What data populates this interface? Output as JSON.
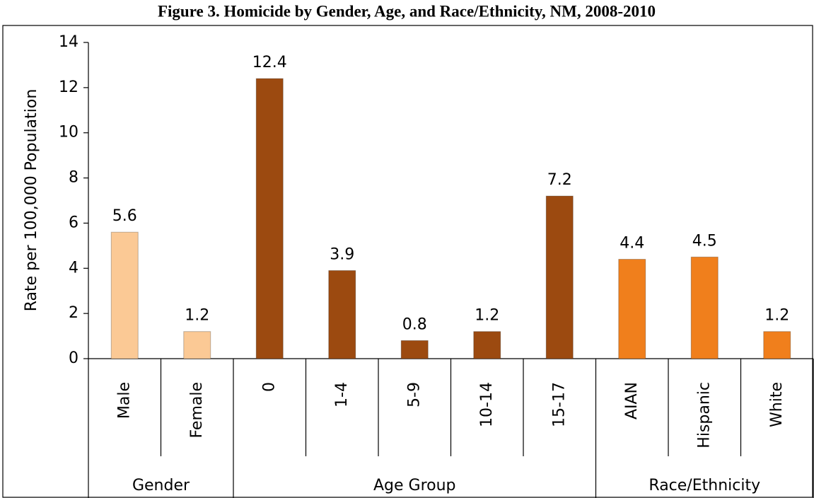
{
  "chart_data": {
    "type": "bar",
    "title": "Figure 3.  Homicide by Gender, Age, and Race/Ethnicity, NM, 2008-2010",
    "y_label": "Rate per 100,000 Population",
    "groups": [
      {
        "name": "Gender",
        "color": "#fbc995",
        "categories": [
          "Male",
          "Female"
        ],
        "values": [
          5.6,
          1.2
        ]
      },
      {
        "name": "Age Group",
        "color": "#9c4a10",
        "categories": [
          "0",
          "1-4",
          "5-9",
          "10-14",
          "15-17"
        ],
        "values": [
          12.4,
          3.9,
          0.8,
          1.2,
          7.2
        ]
      },
      {
        "name": "Race/Ethnicity",
        "color": "#f07f1c",
        "categories": [
          "AIAN",
          "Hispanic",
          "White"
        ],
        "values": [
          4.4,
          4.5,
          1.2
        ]
      }
    ],
    "ylim": [
      0,
      14
    ],
    "yticks": [
      0,
      2,
      4,
      6,
      8,
      10,
      12,
      14
    ]
  }
}
